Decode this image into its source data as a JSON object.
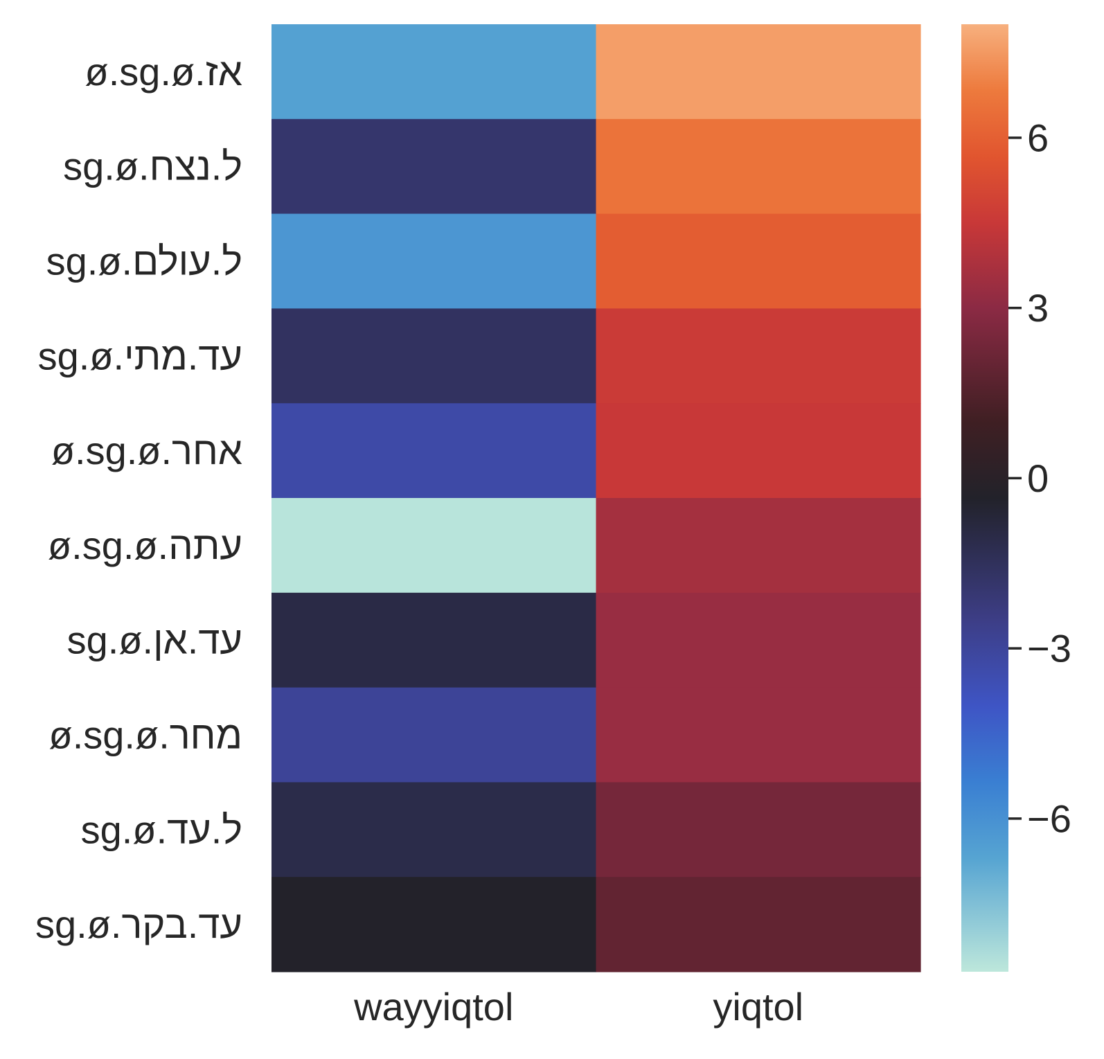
{
  "chart_data": {
    "type": "heatmap",
    "x_categories": [
      "wayyiqtol",
      "yiqtol"
    ],
    "y_categories": [
      "אז.ø.sg.ø",
      "ל.נצח.sg.ø",
      "ל.עולם.sg.ø",
      "עד.מתי.sg.ø",
      "אחר.ø.sg.ø",
      "עתה.ø.sg.ø",
      "עד.אן.sg.ø",
      "מחר.ø.sg.ø",
      "ל.עד.sg.ø",
      "עד.בקר.sg.ø"
    ],
    "values": [
      [
        -6.6,
        7.6
      ],
      [
        -1.9,
        6.6
      ],
      [
        -6.2,
        5.9
      ],
      [
        -1.6,
        4.6
      ],
      [
        -3.3,
        4.5
      ],
      [
        -8.6,
        3.6
      ],
      [
        -1.0,
        3.3
      ],
      [
        -2.9,
        3.3
      ],
      [
        -1.1,
        2.4
      ],
      [
        -0.3,
        1.9
      ]
    ],
    "colorbar": {
      "vmin": -8.7,
      "vmax": 8.0,
      "ticks": [
        6,
        3,
        0,
        -3,
        -6
      ],
      "tick_labels": [
        "6",
        "3",
        "0",
        "−3",
        "−6"
      ],
      "colormap": "icefire",
      "colormap_stops": [
        [
          "#bde7db",
          0.0
        ],
        [
          "#56a4d2",
          0.12
        ],
        [
          "#3a7fd2",
          0.2
        ],
        [
          "#3e55c5",
          0.28
        ],
        [
          "#3d3e87",
          0.37
        ],
        [
          "#22222a",
          0.5
        ],
        [
          "#3f1f23",
          0.58
        ],
        [
          "#8b2a44",
          0.7
        ],
        [
          "#c83838",
          0.79
        ],
        [
          "#e1552f",
          0.86
        ],
        [
          "#ed7a3d",
          0.93
        ],
        [
          "#f7b07e",
          1.0
        ]
      ]
    },
    "title": "",
    "xlabel": "",
    "ylabel": ""
  }
}
